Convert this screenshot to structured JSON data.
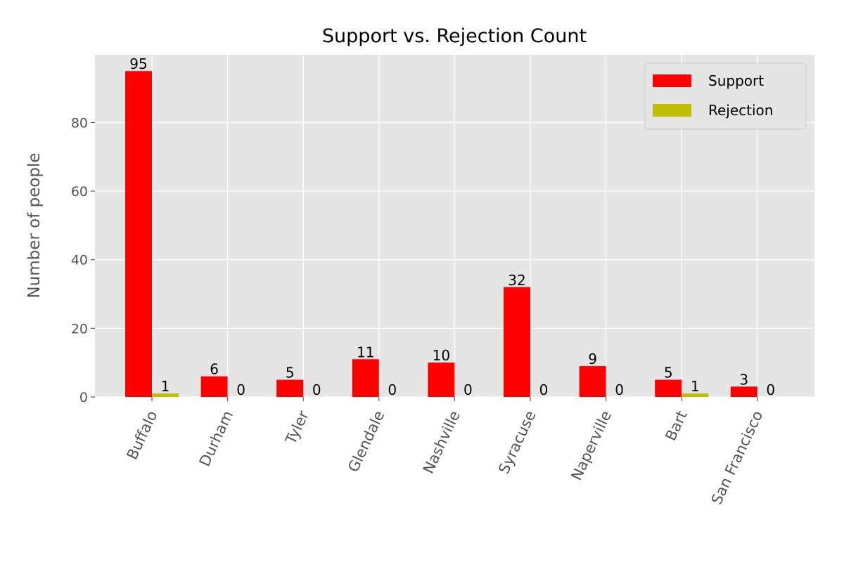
{
  "chart_data": {
    "type": "bar",
    "title": "Support vs. Rejection Count",
    "xlabel": "",
    "ylabel": "Number of people",
    "categories": [
      "Buffalo",
      "Durham",
      "Tyler",
      "Glendale",
      "Nashville",
      "Syracuse",
      "Naperville",
      "Bart",
      "San Francisco"
    ],
    "series": [
      {
        "name": "Support",
        "values": [
          95,
          6,
          5,
          11,
          10,
          32,
          9,
          5,
          3
        ],
        "color": "#ff0000"
      },
      {
        "name": "Rejection",
        "values": [
          1,
          0,
          0,
          0,
          0,
          0,
          0,
          1,
          0
        ],
        "color": "#bfbf00"
      }
    ],
    "yticks": [
      "0",
      "20",
      "40",
      "60",
      "80"
    ],
    "ylim": [
      0,
      99.75
    ],
    "grid": true,
    "legend": "top-right",
    "background_color": "#e5e5e5"
  }
}
